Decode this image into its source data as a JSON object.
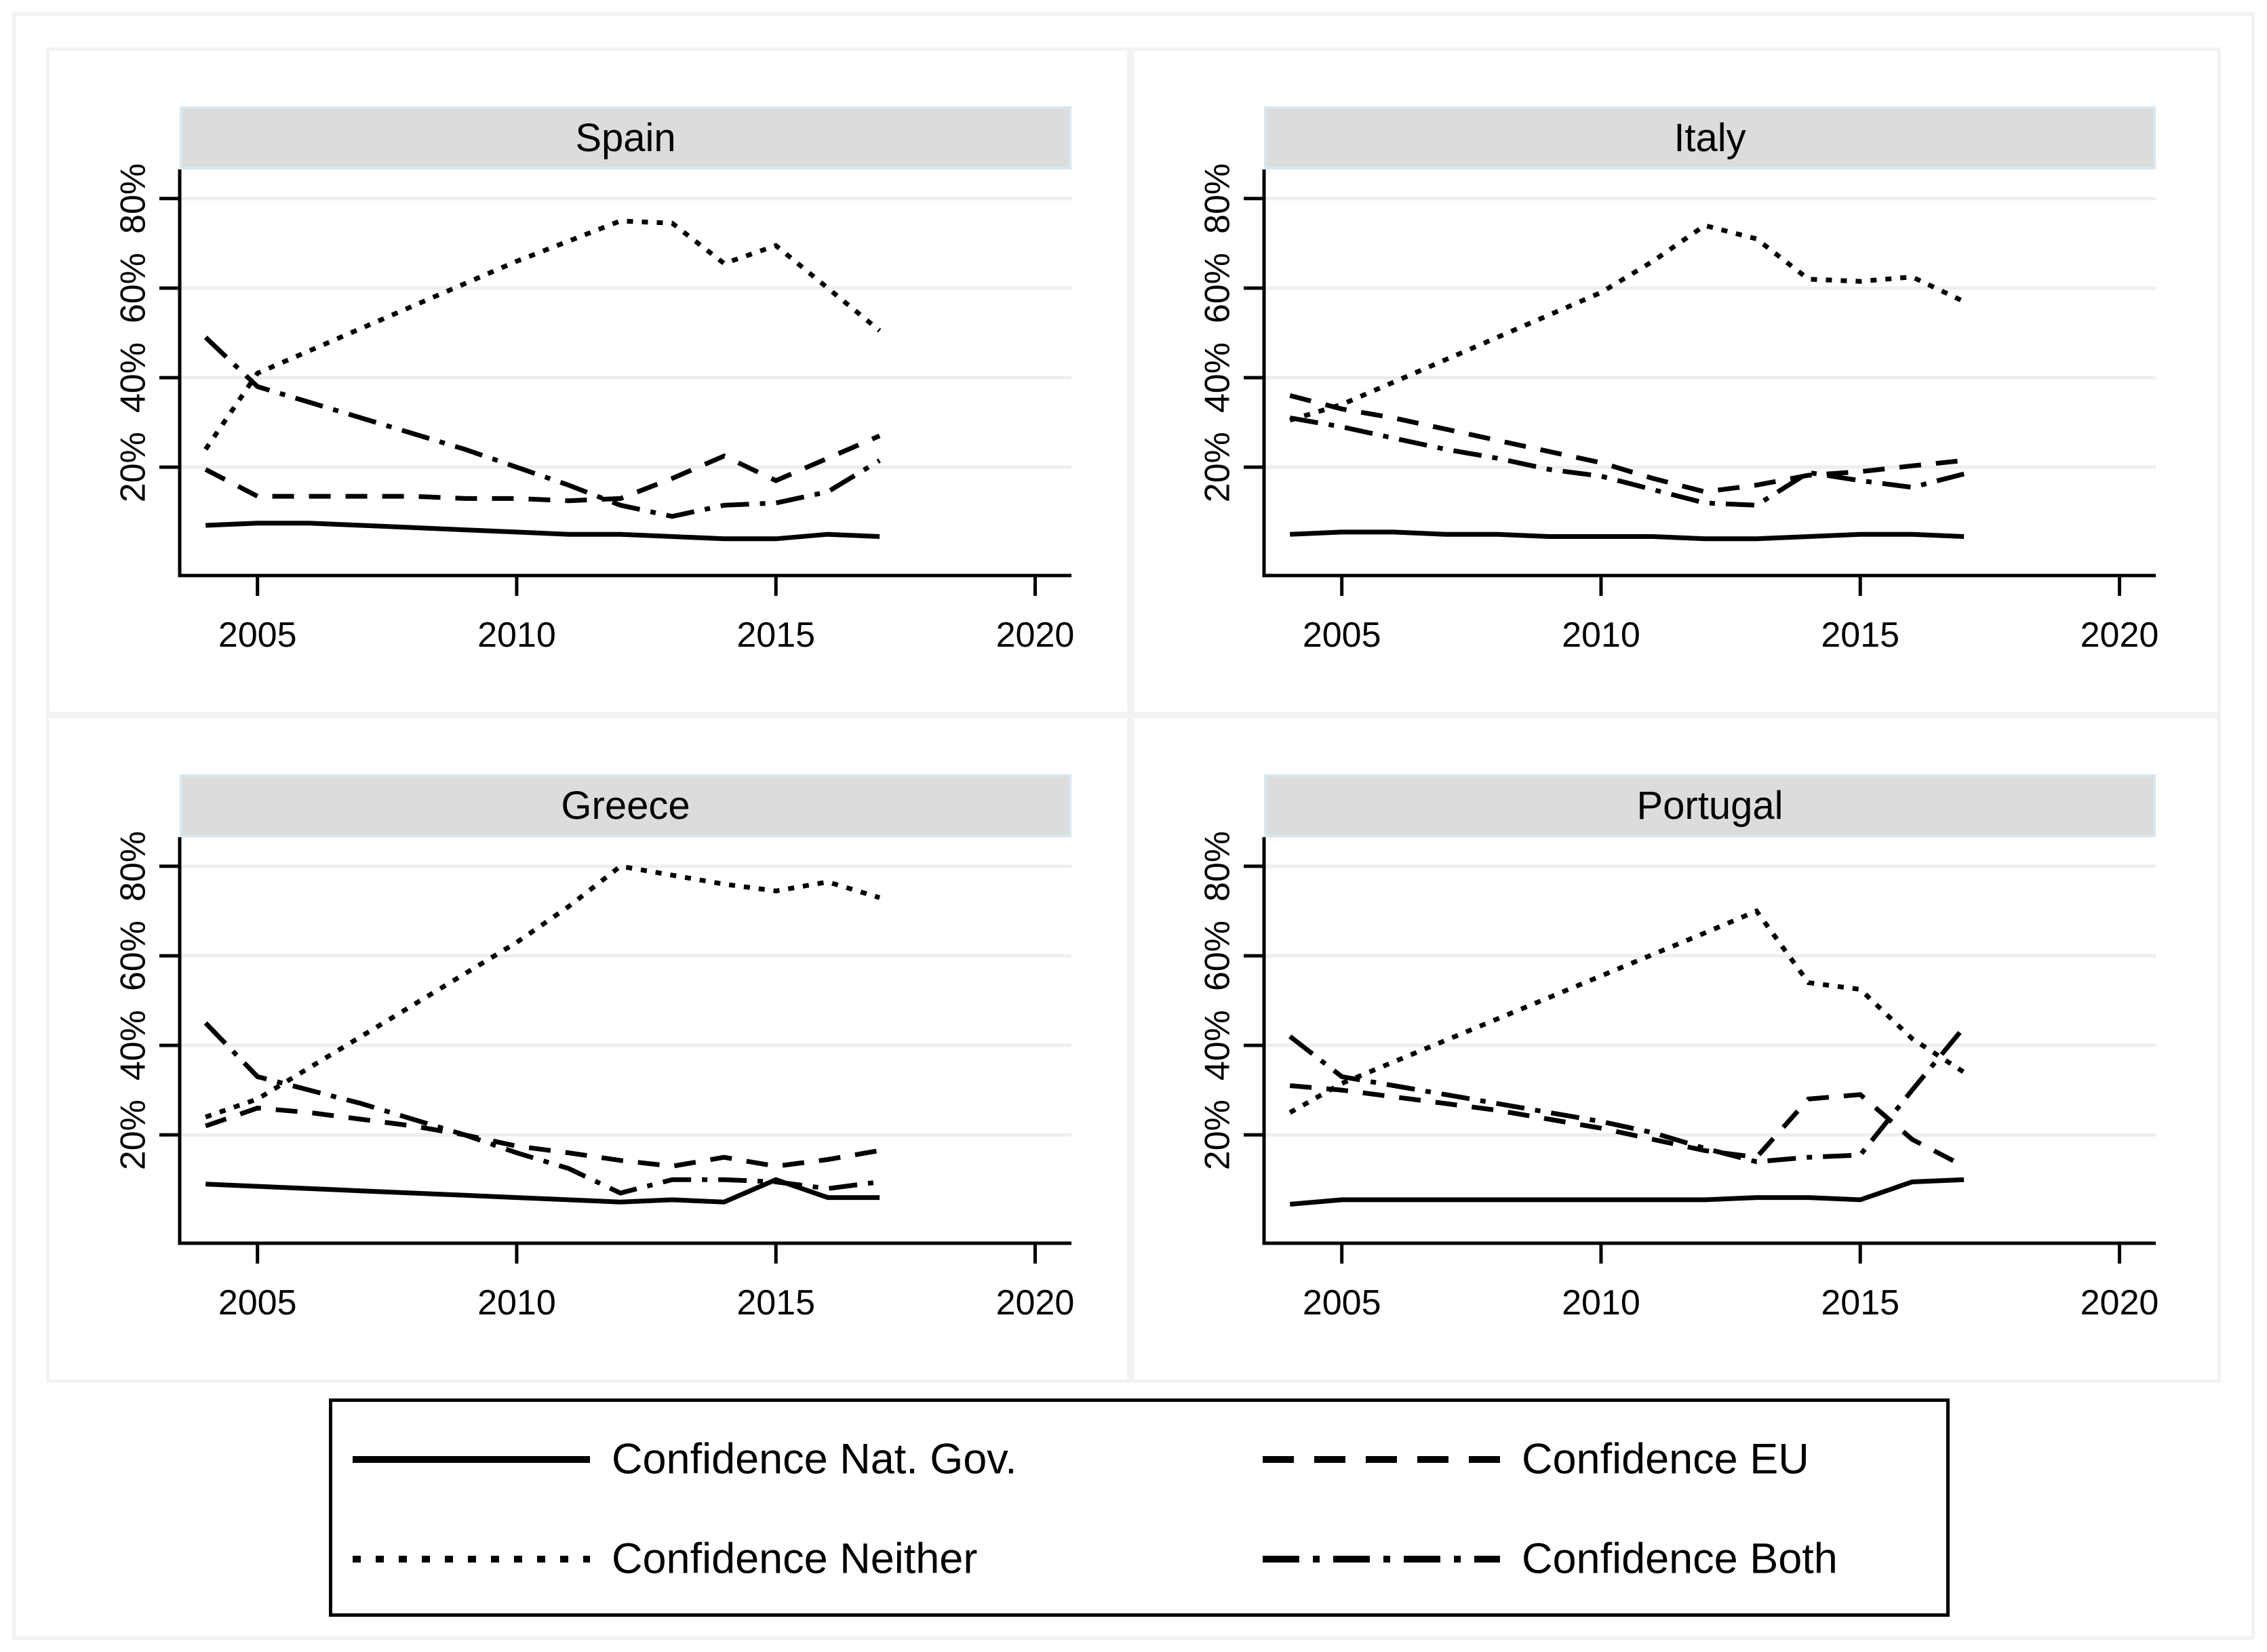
{
  "figure": {
    "background": "#ffffff",
    "frame_color": "#f2f2f2",
    "strip_fill": "#dcdcdc",
    "strip_border": "#d8e7ef",
    "gridline_color": "#eeeeee",
    "line_color": "#000000"
  },
  "axis": {
    "x_domain": [
      2003.5,
      2020.7
    ],
    "y_domain": [
      -4.2,
      86.5
    ],
    "x_ticks": [
      2005,
      2010,
      2015,
      2020
    ],
    "x_tick_labels": [
      "2005",
      "2010",
      "2015",
      "2020"
    ],
    "y_ticks": [
      20,
      40,
      60,
      80
    ],
    "y_tick_labels": [
      "20%",
      "40%",
      "60%",
      "80%"
    ],
    "grid": true
  },
  "legend": {
    "position": "bottom",
    "items": [
      {
        "label": "Confidence Nat. Gov.",
        "style": "solid"
      },
      {
        "label": "Confidence EU",
        "style": "dashed"
      },
      {
        "label": "Confidence Neither",
        "style": "dotted"
      },
      {
        "label": "Confidence Both",
        "style": "dashdot"
      }
    ]
  },
  "chart_data": [
    {
      "type": "line",
      "title": "Spain",
      "x": [
        2004,
        2005,
        2006,
        2007,
        2008,
        2009,
        2010,
        2011,
        2012,
        2013,
        2014,
        2015,
        2016,
        2017
      ],
      "ylim": [
        0,
        86
      ],
      "series": [
        {
          "name": "Confidence Nat. Gov.",
          "style": "solid",
          "values": [
            7,
            7.5,
            7.5,
            7,
            6.5,
            6,
            5.5,
            5,
            5,
            4.5,
            4,
            4,
            5,
            4.5
          ]
        },
        {
          "name": "Confidence EU",
          "style": "dashed",
          "values": [
            19.5,
            13.5,
            13.5,
            13.5,
            13.5,
            13,
            13,
            12.5,
            13,
            17.5,
            22.5,
            17,
            22,
            27
          ]
        },
        {
          "name": "Confidence Neither",
          "style": "dotted",
          "values": [
            24,
            41,
            46,
            51,
            56,
            61,
            66,
            70.5,
            75,
            74.5,
            65.5,
            69.5,
            60,
            50.5
          ]
        },
        {
          "name": "Confidence Both",
          "style": "dashdot",
          "values": [
            49,
            38,
            34.5,
            31,
            27.5,
            24,
            20,
            16,
            11.5,
            9,
            11.5,
            12,
            14.5,
            21.5
          ]
        }
      ]
    },
    {
      "type": "line",
      "title": "Italy",
      "x": [
        2004,
        2005,
        2006,
        2007,
        2008,
        2009,
        2010,
        2011,
        2012,
        2013,
        2014,
        2015,
        2016,
        2017
      ],
      "ylim": [
        0,
        86
      ],
      "series": [
        {
          "name": "Confidence Nat. Gov.",
          "style": "solid",
          "values": [
            5,
            5.5,
            5.5,
            5,
            5,
            4.5,
            4.5,
            4.5,
            4,
            4,
            4.5,
            5,
            5,
            4.5
          ]
        },
        {
          "name": "Confidence EU",
          "style": "dashed",
          "values": [
            36,
            33,
            31,
            28.5,
            26,
            23.5,
            21,
            17.5,
            14.5,
            16,
            18.2,
            19,
            20.3,
            21.5
          ]
        },
        {
          "name": "Confidence Neither",
          "style": "dotted",
          "values": [
            30.5,
            34,
            39,
            44,
            49,
            54,
            59,
            66,
            74,
            71,
            62,
            61.5,
            62.5,
            57
          ]
        },
        {
          "name": "Confidence Both",
          "style": "dashdot",
          "values": [
            31,
            29,
            26.5,
            24,
            22,
            19.5,
            18,
            15,
            12,
            11.5,
            18.8,
            17,
            15.5,
            18.5
          ]
        }
      ]
    },
    {
      "type": "line",
      "title": "Greece",
      "x": [
        2004,
        2005,
        2006,
        2007,
        2008,
        2009,
        2010,
        2011,
        2012,
        2013,
        2014,
        2015,
        2016,
        2017
      ],
      "ylim": [
        0,
        86
      ],
      "series": [
        {
          "name": "Confidence Nat. Gov.",
          "style": "solid",
          "values": [
            9,
            8.5,
            8,
            7.5,
            7,
            6.5,
            6,
            5.5,
            5,
            5.5,
            5,
            10,
            6,
            6
          ]
        },
        {
          "name": "Confidence EU",
          "style": "dashed",
          "values": [
            22,
            26,
            25,
            23.5,
            22,
            20,
            17.5,
            16,
            14.3,
            13,
            15,
            13,
            14.5,
            16.5
          ]
        },
        {
          "name": "Confidence Neither",
          "style": "dotted",
          "values": [
            24,
            28,
            35,
            42,
            49,
            56,
            63,
            71,
            80,
            78,
            76,
            74.5,
            76.5,
            73
          ]
        },
        {
          "name": "Confidence Both",
          "style": "dashdot",
          "values": [
            45,
            33,
            30,
            27,
            23.5,
            20,
            16,
            12.5,
            7,
            10,
            10,
            9.5,
            8,
            9.5
          ]
        }
      ]
    },
    {
      "type": "line",
      "title": "Portugal",
      "x": [
        2004,
        2005,
        2006,
        2007,
        2008,
        2009,
        2010,
        2011,
        2012,
        2013,
        2014,
        2015,
        2016,
        2017
      ],
      "ylim": [
        0,
        86
      ],
      "series": [
        {
          "name": "Confidence Nat. Gov.",
          "style": "solid",
          "values": [
            4.5,
            5.5,
            5.5,
            5.5,
            5.5,
            5.5,
            5.5,
            5.5,
            5.5,
            6,
            6,
            5.5,
            9.5,
            10
          ]
        },
        {
          "name": "Confidence EU",
          "style": "dashed",
          "values": [
            31,
            30,
            28.5,
            27,
            25.5,
            23.5,
            21.5,
            19,
            16.5,
            15,
            28,
            29,
            19,
            13
          ]
        },
        {
          "name": "Confidence Neither",
          "style": "dotted",
          "values": [
            25,
            31.5,
            36.3,
            41.1,
            45.9,
            50.7,
            55.5,
            60.3,
            65.1,
            70,
            54,
            52.5,
            41.5,
            34
          ]
        },
        {
          "name": "Confidence Both",
          "style": "dashdot",
          "values": [
            42,
            33,
            31,
            29,
            27,
            25,
            23,
            20.5,
            17,
            14,
            15,
            15.5,
            30,
            44
          ]
        }
      ]
    }
  ]
}
